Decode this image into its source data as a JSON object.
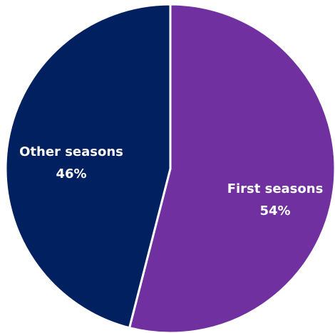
{
  "chart_data": {
    "type": "pie",
    "start_angle_deg": 0,
    "direction": "clockwise",
    "slices": [
      {
        "label": "First seasons",
        "value": 54,
        "value_label": "54%",
        "color": "#7030a0"
      },
      {
        "label": "Other seasons",
        "value": 46,
        "value_label": "46%",
        "color": "#002060"
      }
    ],
    "separator_color": "#ffffff"
  }
}
